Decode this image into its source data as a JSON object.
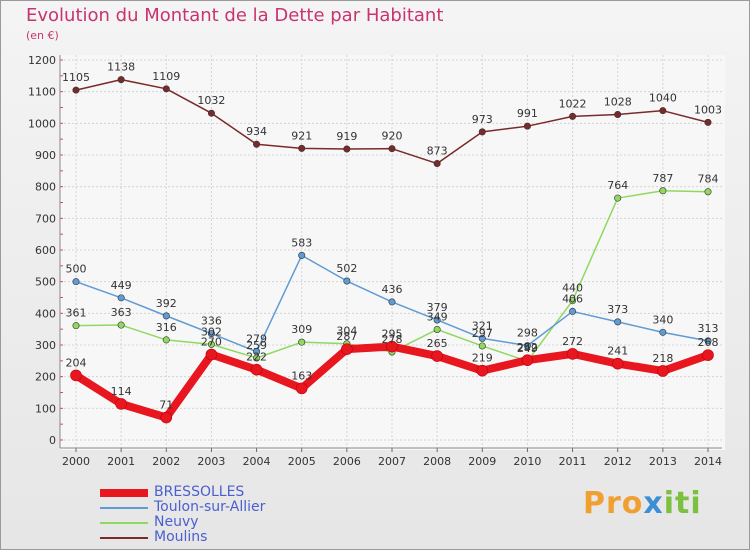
{
  "title": "Evolution du Montant de la Dette par Habitant",
  "subtitle": "(en €)",
  "logo": {
    "part1": "Pro",
    "part2": "x",
    "part3": "iti"
  },
  "chart_data": {
    "type": "line",
    "x": [
      2000,
      2001,
      2002,
      2003,
      2004,
      2005,
      2006,
      2007,
      2008,
      2009,
      2010,
      2011,
      2012,
      2013,
      2014
    ],
    "ylim": [
      0,
      1200
    ],
    "yticks": [
      0,
      100,
      200,
      300,
      400,
      500,
      600,
      700,
      800,
      900,
      1000,
      1100,
      1200
    ],
    "grid": true,
    "legend_position": "bottom-left",
    "series": [
      {
        "name": "BRESSOLLES",
        "color": "#e8161e",
        "highlight": true,
        "values": [
          204,
          114,
          71,
          270,
          222,
          163,
          287,
          295,
          265,
          219,
          252,
          272,
          241,
          218,
          268
        ]
      },
      {
        "name": "Toulon-sur-Allier",
        "color": "#5f9bd4",
        "values": [
          500,
          449,
          392,
          336,
          279,
          583,
          502,
          436,
          379,
          321,
          298,
          406,
          373,
          340,
          313
        ]
      },
      {
        "name": "Neuvy",
        "color": "#90d860",
        "values": [
          361,
          363,
          316,
          302,
          259,
          309,
          304,
          278,
          349,
          297,
          249,
          440,
          764,
          787,
          784
        ]
      },
      {
        "name": "Moulins",
        "color": "#7a2a2a",
        "values": [
          1105,
          1138,
          1109,
          1032,
          934,
          921,
          919,
          920,
          873,
          973,
          991,
          1022,
          1028,
          1040,
          1003
        ]
      }
    ]
  }
}
